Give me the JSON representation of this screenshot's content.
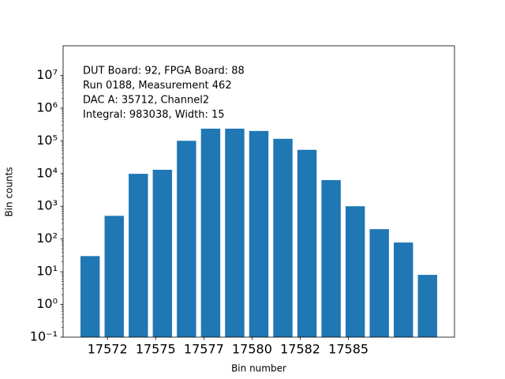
{
  "chart_data": {
    "type": "bar",
    "xlabel": "Bin number",
    "ylabel": "Bin counts",
    "annotations": [
      "DUT Board: 92, FPGA Board: 88",
      "Run 0188, Measurement 462",
      "DAC A: 35712, Channel2",
      "Integral: 983038, Width: 15"
    ],
    "x": [
      17571.6,
      17572.85,
      17574.1,
      17575.35,
      17576.6,
      17577.85,
      17579.1,
      17580.35,
      17581.6,
      17582.85,
      17584.1,
      17585.35,
      17586.6,
      17587.85,
      17589.1
    ],
    "values": [
      30,
      510,
      9800,
      13000,
      100000,
      235000,
      235000,
      200000,
      115000,
      53000,
      6300,
      1000,
      200,
      78,
      8
    ],
    "bar_width": 1.0,
    "color": "#1f77b4",
    "log_y": true,
    "xlim": [
      17570.2,
      17590.5
    ],
    "ylim": [
      0.1,
      80000000
    ],
    "xticks": [
      {
        "value": 17572.5,
        "label": "17572"
      },
      {
        "value": 17575,
        "label": "17575"
      },
      {
        "value": 17577.5,
        "label": "17577"
      },
      {
        "value": 17580,
        "label": "17580"
      },
      {
        "value": 17582.5,
        "label": "17582"
      },
      {
        "value": 17585,
        "label": "17585"
      }
    ],
    "yticks": [
      {
        "value": 0.1,
        "label": "10⁻¹"
      },
      {
        "value": 1,
        "label": "10⁰"
      },
      {
        "value": 10,
        "label": "10¹"
      },
      {
        "value": 100,
        "label": "10²"
      },
      {
        "value": 1000,
        "label": "10³"
      },
      {
        "value": 10000,
        "label": "10⁴"
      },
      {
        "value": 100000,
        "label": "10⁵"
      },
      {
        "value": 1000000,
        "label": "10⁶"
      },
      {
        "value": 10000000,
        "label": "10⁷"
      }
    ]
  }
}
